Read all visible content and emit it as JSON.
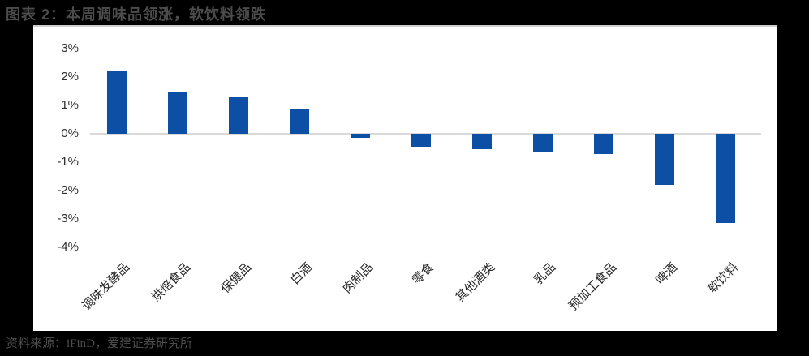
{
  "page": {
    "title": "图表 2：本周调味品领涨，软饮料领跌",
    "source_note": "资料来源：iFinD，爱建证券研究所"
  },
  "colors": {
    "background": "#000000",
    "panel_background": "#ffffff",
    "bar": "#0e4fa6",
    "title_text": "#4c4c4c",
    "axis_text": "#2e2e2e",
    "zero_line": "#d9d9d9"
  },
  "chart_data": {
    "type": "bar",
    "title": "图表 2：本周调味品领涨，软饮料领跌",
    "categories": [
      "调味发酵品",
      "烘焙食品",
      "保健品",
      "白酒",
      "肉制品",
      "零食",
      "其他酒类",
      "乳品",
      "预加工食品",
      "啤酒",
      "软饮料"
    ],
    "values": [
      2.2,
      1.45,
      1.3,
      0.9,
      -0.15,
      -0.45,
      -0.55,
      -0.65,
      -0.7,
      -1.8,
      -3.15
    ],
    "unit": "%",
    "xlabel": "",
    "ylabel": "",
    "ylim": [
      -4,
      3
    ],
    "ytick_values": [
      3,
      2,
      1,
      0,
      -1,
      -2,
      -3,
      -4
    ],
    "ytick_labels": [
      "3%",
      "2%",
      "1%",
      "0%",
      "-1%",
      "-2%",
      "-3%",
      "-4%"
    ],
    "grid": "zero-line-only",
    "legend_position": "none",
    "xtick_rotation_deg": 45
  }
}
